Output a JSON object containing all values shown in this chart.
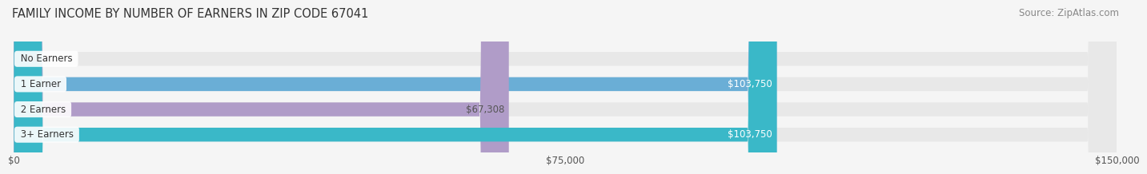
{
  "title": "FAMILY INCOME BY NUMBER OF EARNERS IN ZIP CODE 67041",
  "source": "Source: ZipAtlas.com",
  "categories": [
    "No Earners",
    "1 Earner",
    "2 Earners",
    "3+ Earners"
  ],
  "values": [
    0,
    103750,
    67308,
    103750
  ],
  "bar_colors": [
    "#f4a0a0",
    "#6aaed6",
    "#b09cc8",
    "#3ab8c8"
  ],
  "label_colors": [
    "#888888",
    "#ffffff",
    "#555555",
    "#ffffff"
  ],
  "xlim": [
    0,
    150000
  ],
  "xtick_values": [
    0,
    75000,
    150000
  ],
  "xtick_labels": [
    "$0",
    "$75,000",
    "$150,000"
  ],
  "background_color": "#f5f5f5",
  "bar_bg_color": "#e8e8e8",
  "title_fontsize": 10.5,
  "source_fontsize": 8.5,
  "label_fontsize": 8.5,
  "bar_height": 0.55,
  "bar_label_fontsize": 8.5
}
